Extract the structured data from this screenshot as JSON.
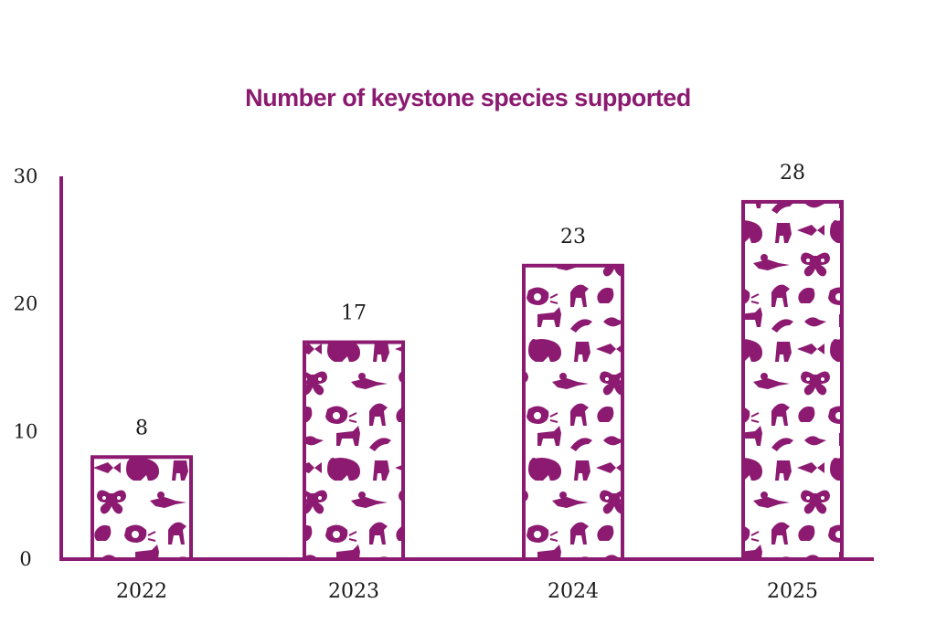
{
  "colors": {
    "accent": "#8b1a70",
    "bar_fill": "#ffffff",
    "text": "#1a1a1a"
  },
  "icons": [
    "fish-icon",
    "bear-icon",
    "bird-icon",
    "butterfly-icon",
    "lizard-icon",
    "rooster-icon",
    "bull-icon",
    "horse-icon",
    "dolphin-icon",
    "goat-icon",
    "wolf-icon",
    "snail-icon"
  ],
  "chart_data": {
    "type": "bar",
    "title": "Number of keystone species supported",
    "categories": [
      "2022",
      "2023",
      "2024",
      "2025"
    ],
    "values": [
      8,
      17,
      23,
      28
    ],
    "data_labels": [
      "8",
      "17",
      "23",
      "28"
    ],
    "xlabel": "",
    "ylabel": "",
    "ylim": [
      0,
      30
    ],
    "yticks": [
      0,
      10,
      20,
      30
    ],
    "ytick_labels": [
      "0",
      "10",
      "20",
      "30"
    ],
    "grid": false,
    "legend": "none",
    "bar_style": "outlined bars filled with animal silhouette pattern"
  }
}
